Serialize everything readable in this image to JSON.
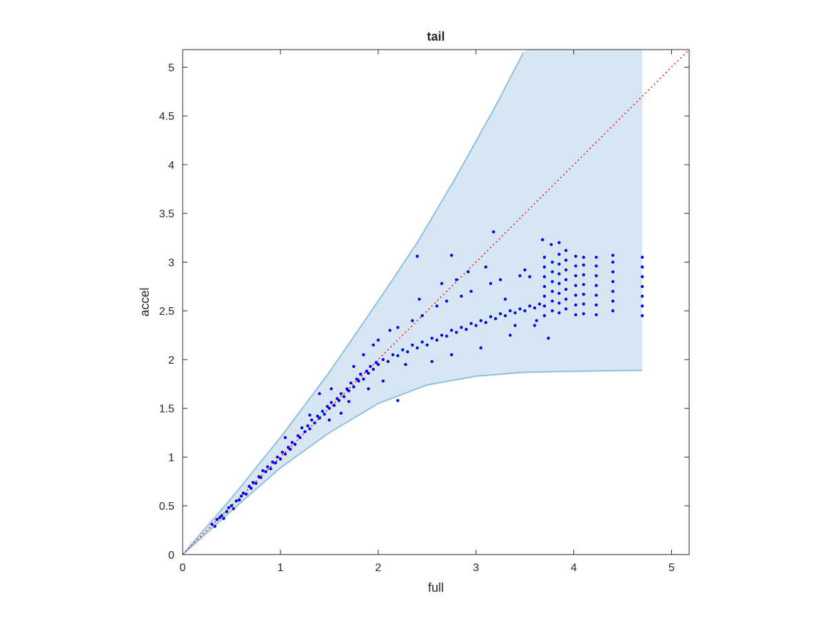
{
  "chart_data": {
    "type": "scatter",
    "title": "tail",
    "xlabel": "full",
    "ylabel": "accel",
    "xlim": [
      0,
      5.18
    ],
    "ylim": [
      0,
      5.18
    ],
    "xticks": [
      0,
      1,
      2,
      3,
      4,
      5
    ],
    "yticks": [
      0,
      0.5,
      1,
      1.5,
      2,
      2.5,
      3,
      3.5,
      4,
      4.5,
      5
    ],
    "xtick_labels": [
      "0",
      "1",
      "2",
      "3",
      "4",
      "5"
    ],
    "ytick_labels": [
      "0",
      "0.5",
      "1",
      "1.5",
      "2",
      "2.5",
      "3",
      "3.5",
      "4",
      "4.5",
      "5"
    ],
    "grid": false,
    "box": true,
    "reference_line": {
      "style": "dotted",
      "color": "#ff0000",
      "from": [
        0,
        0
      ],
      "to": [
        5.18,
        5.18
      ]
    },
    "band": {
      "fill_color": "#d6e6f3",
      "edge_color": "#8fbfe0",
      "x_max": 4.7,
      "upper": [
        [
          0,
          0
        ],
        [
          0.5,
          0.58
        ],
        [
          1,
          1.2
        ],
        [
          1.5,
          1.87
        ],
        [
          2,
          2.6
        ],
        [
          2.4,
          3.2
        ],
        [
          2.8,
          3.88
        ],
        [
          3.2,
          4.6
        ],
        [
          3.5,
          5.18
        ],
        [
          4.7,
          5.18
        ]
      ],
      "lower": [
        [
          0,
          0
        ],
        [
          0.5,
          0.45
        ],
        [
          1,
          0.89
        ],
        [
          1.5,
          1.25
        ],
        [
          2,
          1.55
        ],
        [
          2.5,
          1.74
        ],
        [
          3,
          1.83
        ],
        [
          3.5,
          1.87
        ],
        [
          4,
          1.88
        ],
        [
          4.7,
          1.89
        ]
      ]
    },
    "series": [
      {
        "color": "#0000ee",
        "marker": "dot",
        "points": [
          [
            0.3,
            0.31
          ],
          [
            0.33,
            0.29
          ],
          [
            0.35,
            0.36
          ],
          [
            0.38,
            0.38
          ],
          [
            0.4,
            0.4
          ],
          [
            0.42,
            0.37
          ],
          [
            0.45,
            0.44
          ],
          [
            0.47,
            0.48
          ],
          [
            0.5,
            0.5
          ],
          [
            0.52,
            0.47
          ],
          [
            0.55,
            0.55
          ],
          [
            0.58,
            0.56
          ],
          [
            0.6,
            0.6
          ],
          [
            0.62,
            0.63
          ],
          [
            0.65,
            0.62
          ],
          [
            0.68,
            0.7
          ],
          [
            0.7,
            0.68
          ],
          [
            0.72,
            0.74
          ],
          [
            0.75,
            0.73
          ],
          [
            0.78,
            0.8
          ],
          [
            0.8,
            0.79
          ],
          [
            0.82,
            0.86
          ],
          [
            0.85,
            0.85
          ],
          [
            0.87,
            0.9
          ],
          [
            0.9,
            0.88
          ],
          [
            0.92,
            0.95
          ],
          [
            0.95,
            0.94
          ],
          [
            0.97,
            1.0
          ],
          [
            1.0,
            0.98
          ],
          [
            1.02,
            1.05
          ],
          [
            1.05,
            1.03
          ],
          [
            1.08,
            1.1
          ],
          [
            1.1,
            1.08
          ],
          [
            1.12,
            1.15
          ],
          [
            1.15,
            1.13
          ],
          [
            1.18,
            1.22
          ],
          [
            1.2,
            1.2
          ],
          [
            1.22,
            1.3
          ],
          [
            1.25,
            1.26
          ],
          [
            1.28,
            1.32
          ],
          [
            1.3,
            1.29
          ],
          [
            1.32,
            1.38
          ],
          [
            1.35,
            1.35
          ],
          [
            1.38,
            1.42
          ],
          [
            1.4,
            1.4
          ],
          [
            1.43,
            1.47
          ],
          [
            1.45,
            1.44
          ],
          [
            1.48,
            1.52
          ],
          [
            1.5,
            1.5
          ],
          [
            1.52,
            1.56
          ],
          [
            1.55,
            1.53
          ],
          [
            1.58,
            1.6
          ],
          [
            1.6,
            1.58
          ],
          [
            1.62,
            1.65
          ],
          [
            1.65,
            1.62
          ],
          [
            1.68,
            1.7
          ],
          [
            1.7,
            1.68
          ],
          [
            1.72,
            1.76
          ],
          [
            1.75,
            1.72
          ],
          [
            1.78,
            1.8
          ],
          [
            1.8,
            1.78
          ],
          [
            1.82,
            1.85
          ],
          [
            1.85,
            1.8
          ],
          [
            1.88,
            1.88
          ],
          [
            1.9,
            1.86
          ],
          [
            1.92,
            1.93
          ],
          [
            1.95,
            1.9
          ],
          [
            1.98,
            1.97
          ],
          [
            2.0,
            1.95
          ],
          [
            2.05,
            2.0
          ],
          [
            2.1,
            1.98
          ],
          [
            2.15,
            2.05
          ],
          [
            2.2,
            2.04
          ],
          [
            2.25,
            2.1
          ],
          [
            2.3,
            2.08
          ],
          [
            2.35,
            2.15
          ],
          [
            2.4,
            2.12
          ],
          [
            2.45,
            2.18
          ],
          [
            2.5,
            2.15
          ],
          [
            2.55,
            2.22
          ],
          [
            2.6,
            2.2
          ],
          [
            2.65,
            2.25
          ],
          [
            2.7,
            2.24
          ],
          [
            2.75,
            2.3
          ],
          [
            2.8,
            2.28
          ],
          [
            2.85,
            2.33
          ],
          [
            2.9,
            2.31
          ],
          [
            2.95,
            2.37
          ],
          [
            3.0,
            2.35
          ],
          [
            3.05,
            2.4
          ],
          [
            3.1,
            2.38
          ],
          [
            3.15,
            2.44
          ],
          [
            3.2,
            2.42
          ],
          [
            3.25,
            2.47
          ],
          [
            3.3,
            2.45
          ],
          [
            3.35,
            2.5
          ],
          [
            3.4,
            2.48
          ],
          [
            3.45,
            2.52
          ],
          [
            3.5,
            2.5
          ],
          [
            3.55,
            2.55
          ],
          [
            3.6,
            2.53
          ],
          [
            3.65,
            2.57
          ],
          [
            1.05,
            1.2
          ],
          [
            1.3,
            1.43
          ],
          [
            1.52,
            1.7
          ],
          [
            1.62,
            1.45
          ],
          [
            1.75,
            1.93
          ],
          [
            1.85,
            2.05
          ],
          [
            1.95,
            2.15
          ],
          [
            2.05,
            1.78
          ],
          [
            2.12,
            2.3
          ],
          [
            2.2,
            2.33
          ],
          [
            2.28,
            1.95
          ],
          [
            2.35,
            2.4
          ],
          [
            2.45,
            2.45
          ],
          [
            2.55,
            1.98
          ],
          [
            2.6,
            2.55
          ],
          [
            2.7,
            2.6
          ],
          [
            2.75,
            2.05
          ],
          [
            2.85,
            2.65
          ],
          [
            2.95,
            2.7
          ],
          [
            3.05,
            2.12
          ],
          [
            3.15,
            2.78
          ],
          [
            3.25,
            2.82
          ],
          [
            3.35,
            2.25
          ],
          [
            3.45,
            2.86
          ],
          [
            3.5,
            2.92
          ],
          [
            3.6,
            2.35
          ],
          [
            1.4,
            1.65
          ],
          [
            1.5,
            1.38
          ],
          [
            1.7,
            1.57
          ],
          [
            1.9,
            1.7
          ],
          [
            2.0,
            2.2
          ],
          [
            2.2,
            1.58
          ],
          [
            2.4,
            3.06
          ],
          [
            2.75,
            3.07
          ],
          [
            3.18,
            3.31
          ],
          [
            3.68,
            3.23
          ],
          [
            3.77,
            3.18
          ],
          [
            3.85,
            3.2
          ],
          [
            2.42,
            2.62
          ],
          [
            2.65,
            2.78
          ],
          [
            2.8,
            2.82
          ],
          [
            2.92,
            2.9
          ],
          [
            3.1,
            2.95
          ],
          [
            3.3,
            2.62
          ],
          [
            3.4,
            2.35
          ],
          [
            3.55,
            2.85
          ],
          [
            3.62,
            2.4
          ],
          [
            3.74,
            2.22
          ],
          [
            3.7,
            2.45
          ],
          [
            3.7,
            2.55
          ],
          [
            3.7,
            2.65
          ],
          [
            3.7,
            2.75
          ],
          [
            3.7,
            2.85
          ],
          [
            3.7,
            2.95
          ],
          [
            3.7,
            3.05
          ],
          [
            3.78,
            2.5
          ],
          [
            3.78,
            2.6
          ],
          [
            3.78,
            2.7
          ],
          [
            3.78,
            2.8
          ],
          [
            3.78,
            2.9
          ],
          [
            3.78,
            3.0
          ],
          [
            3.85,
            2.48
          ],
          [
            3.85,
            2.58
          ],
          [
            3.85,
            2.68
          ],
          [
            3.85,
            2.78
          ],
          [
            3.85,
            2.88
          ],
          [
            3.85,
            2.98
          ],
          [
            3.85,
            3.08
          ],
          [
            3.92,
            2.52
          ],
          [
            3.92,
            2.62
          ],
          [
            3.92,
            2.72
          ],
          [
            3.92,
            2.82
          ],
          [
            3.92,
            2.92
          ],
          [
            3.92,
            3.02
          ],
          [
            3.92,
            3.12
          ],
          [
            4.02,
            2.46
          ],
          [
            4.02,
            2.56
          ],
          [
            4.02,
            2.66
          ],
          [
            4.02,
            2.76
          ],
          [
            4.02,
            2.86
          ],
          [
            4.02,
            2.96
          ],
          [
            4.02,
            3.06
          ],
          [
            4.1,
            2.47
          ],
          [
            4.1,
            2.57
          ],
          [
            4.1,
            2.67
          ],
          [
            4.1,
            2.77
          ],
          [
            4.1,
            2.87
          ],
          [
            4.1,
            2.97
          ],
          [
            4.1,
            3.05
          ],
          [
            4.23,
            2.46
          ],
          [
            4.23,
            2.56
          ],
          [
            4.23,
            2.66
          ],
          [
            4.23,
            2.76
          ],
          [
            4.23,
            2.86
          ],
          [
            4.23,
            2.96
          ],
          [
            4.23,
            3.05
          ],
          [
            4.4,
            2.5
          ],
          [
            4.4,
            2.6
          ],
          [
            4.4,
            2.7
          ],
          [
            4.4,
            2.8
          ],
          [
            4.4,
            2.9
          ],
          [
            4.4,
            3.0
          ],
          [
            4.4,
            3.07
          ],
          [
            4.7,
            2.45
          ],
          [
            4.7,
            2.55
          ],
          [
            4.7,
            2.65
          ],
          [
            4.7,
            2.75
          ],
          [
            4.7,
            2.85
          ],
          [
            4.7,
            2.95
          ],
          [
            4.7,
            3.05
          ]
        ]
      }
    ]
  }
}
